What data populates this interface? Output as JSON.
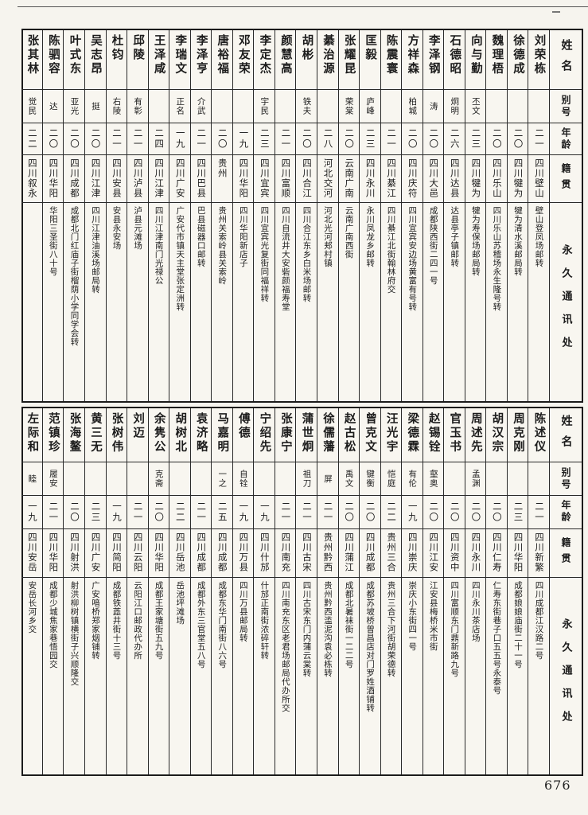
{
  "page": {
    "number": "676"
  },
  "table_headers": {
    "name": "姓名",
    "alias": "别号",
    "age": "年龄",
    "origin": "籍贯",
    "address": "永久通讯处"
  },
  "tables": [
    {
      "persons": [
        {
          "name": "刘荣栋",
          "alias": "",
          "age": "二一",
          "origin": "四川壁山",
          "address": "壁山登凤场邮转"
        },
        {
          "name": "徐德成",
          "alias": "",
          "age": "二〇",
          "origin": "四川犍为",
          "address": "犍为清水溪邮局转"
        },
        {
          "name": "魏理梧",
          "alias": "",
          "age": "二〇",
          "origin": "四川乐山",
          "address": "四川乐山苏稽场永生隆号转"
        },
        {
          "name": "向与勤",
          "alias": "丕文",
          "age": "二三",
          "origin": "四川犍为",
          "address": "犍为寿保场邮局转"
        },
        {
          "name": "石德昭",
          "alias": "炯明",
          "age": "二六",
          "origin": "四川达县",
          "address": "达县亭子镇邮转"
        },
        {
          "name": "李泽钢",
          "alias": "涛",
          "age": "二〇",
          "origin": "四川大邑",
          "address": "成都陕西街二四一号"
        },
        {
          "name": "方祥森",
          "alias": "柏城",
          "age": "二〇",
          "origin": "四川庆符",
          "address": "四川宜宾安边场黄富有号转"
        },
        {
          "name": "陈震寰",
          "alias": "",
          "age": "二一",
          "origin": "四川綦江",
          "address": "四川綦江北街翰林府交"
        },
        {
          "name": "匡毅",
          "alias": "庐峰",
          "age": "二三",
          "origin": "四川永川",
          "address": "永川凤龙乡邮转"
        },
        {
          "name": "张耀昆",
          "alias": "荣棠",
          "age": "二〇",
          "origin": "云南广南",
          "address": "云南广南西街"
        },
        {
          "name": "綦治源",
          "alias": "",
          "age": "二八",
          "origin": "河北交河",
          "address": "河北光河郏村镇"
        },
        {
          "name": "胡彬",
          "alias": "铁夫",
          "age": "二〇",
          "origin": "四川合江",
          "address": "四川合江东乡白米场邮转"
        },
        {
          "name": "颜慧高",
          "alias": "",
          "age": "二一",
          "origin": "四川富顺",
          "address": "四川自流井大安砦颜福寿堂"
        },
        {
          "name": "李定杰",
          "alias": "宇民",
          "age": "二三",
          "origin": "四川宜宾",
          "address": "四川宜宾光复街同福祥转"
        },
        {
          "name": "邓友荣",
          "alias": "",
          "age": "一九",
          "origin": "四川华阳",
          "address": "四川华阳新店子"
        },
        {
          "name": "唐裕福",
          "alias": "",
          "age": "二〇",
          "origin": "贵州",
          "address": "贵州关索岭县关索岭"
        },
        {
          "name": "李泽亨",
          "alias": "介武",
          "age": "二一",
          "origin": "四川巴县",
          "address": "巴县磁器口邮转"
        },
        {
          "name": "李瑞文",
          "alias": "正名",
          "age": "一九",
          "origin": "四川广安",
          "address": "广安代市镇天主堂张定洲转"
        },
        {
          "name": "王泽咸",
          "alias": "",
          "age": "二四",
          "origin": "四川江津",
          "address": "四川江津南门光禄公"
        },
        {
          "name": "邱陵",
          "alias": "有彰",
          "age": "二一",
          "origin": "四川泸县",
          "address": "泸县元滩场"
        },
        {
          "name": "杜钧",
          "alias": "右陵",
          "age": "二一",
          "origin": "四川安县",
          "address": "安县永安场"
        },
        {
          "name": "吴志昂",
          "alias": "挺",
          "age": "二〇",
          "origin": "四川江津",
          "address": "四川江津油溪场邮局转"
        },
        {
          "name": "叶式东",
          "alias": "亚光",
          "age": "二〇",
          "origin": "四川成都",
          "address": "成都北门红庙子街榴荫小学同学会转"
        },
        {
          "name": "陈驷容",
          "alias": "达",
          "age": "二〇",
          "origin": "四川华阳",
          "address": "华阳三圣街八十号"
        },
        {
          "name": "张其林",
          "alias": "觉民",
          "age": "二二",
          "origin": "四川叙永",
          "address": ""
        }
      ]
    },
    {
      "persons": [
        {
          "name": "陈述仪",
          "alias": "",
          "age": "二一",
          "origin": "四川新繁",
          "address": "四川成都江汉路二号"
        },
        {
          "name": "周克刚",
          "alias": "",
          "age": "二三",
          "origin": "四川华阳",
          "address": "成都娘娘庙街二十一号"
        },
        {
          "name": "胡汉宗",
          "alias": "",
          "age": "二〇",
          "origin": "四川仁寿",
          "address": "仁寿东街巷子口五五号永泰号"
        },
        {
          "name": "周述先",
          "alias": "孟渊",
          "age": "二〇",
          "origin": "四川永川",
          "address": "四川永川茶店场"
        },
        {
          "name": "官玉书",
          "alias": "",
          "age": "二〇",
          "origin": "四川资中",
          "address": "四川富顺东门鼎新路九号"
        },
        {
          "name": "赵锡铨",
          "alias": "壑奥",
          "age": "二〇",
          "origin": "四川江安",
          "address": "江安县梅桥米市街"
        },
        {
          "name": "梁德霖",
          "alias": "有伦",
          "age": "一九",
          "origin": "四川崇庆",
          "address": "崇庆小东街四一号"
        },
        {
          "name": "汪光宇",
          "alias": "恺庭",
          "age": "二二",
          "origin": "贵州三合",
          "address": "贵州三合下河街胡荣德转"
        },
        {
          "name": "曾克文",
          "alias": "键衡",
          "age": "二〇",
          "origin": "四川成都",
          "address": "成都苏坡桥曾昌店对门罗姓酒铺转"
        },
        {
          "name": "赵古松",
          "alias": "禹文",
          "age": "二〇",
          "origin": "四川蒲江",
          "address": "成都北暑袜街一二二号"
        },
        {
          "name": "徐儒藩",
          "alias": "屏",
          "age": "二一",
          "origin": "贵州黔西",
          "address": "贵州黔西滥泥沟袁必栋转"
        },
        {
          "name": "蒲世炯",
          "alias": "祖刀",
          "age": "二一",
          "origin": "四川古宋",
          "address": "四川古宋东门内蒲云棠转"
        },
        {
          "name": "张康宁",
          "alias": "",
          "age": "二一",
          "origin": "四川南充",
          "address": "四川南充东区老君场邮局代办所交"
        },
        {
          "name": "宁绍先",
          "alias": "",
          "age": "一九",
          "origin": "四川什邡",
          "address": "什邡正南街浓碎轩转"
        },
        {
          "name": "傅德",
          "alias": "自铨",
          "age": "一九",
          "origin": "四川万县",
          "address": "四川万县邮局转"
        },
        {
          "name": "马嘉明",
          "alias": "一之",
          "age": "二五",
          "origin": "四川成都",
          "address": "成都东华门南街八六号"
        },
        {
          "name": "袁济略",
          "alias": "",
          "age": "二一",
          "origin": "四川成都",
          "address": "成都外东三官堂五八号"
        },
        {
          "name": "胡树北",
          "alias": "",
          "age": "二二",
          "origin": "四川岳池",
          "address": "岳池坪滩场"
        },
        {
          "name": "余隽公",
          "alias": "克斋",
          "age": "二〇",
          "origin": "四川华阳",
          "address": "成都王家塘街五九号"
        },
        {
          "name": "刘迈",
          "alias": "",
          "age": "二一",
          "origin": "四川云阳",
          "address": "云阳江口邮政代办所"
        },
        {
          "name": "张树伟",
          "alias": "",
          "age": "一九",
          "origin": "四川简阳",
          "address": "成都铁蕋井街十三号"
        },
        {
          "name": "黄三无",
          "alias": "",
          "age": "二三",
          "origin": "四川广安",
          "address": "广安喑桥郑家烟铺转"
        },
        {
          "name": "张海鳌",
          "alias": "",
          "age": "二〇",
          "origin": "四川射洪",
          "address": "射洪柳树镇横街子兴顺隆交"
        },
        {
          "name": "范镇珍",
          "alias": "履安",
          "age": "二一",
          "origin": "四川华阳",
          "address": "成都少城焦家巷悟园交"
        },
        {
          "name": "左际和",
          "alias": "睦",
          "age": "一九",
          "origin": "四川安岳",
          "address": "安岳长河乡交"
        }
      ]
    }
  ]
}
